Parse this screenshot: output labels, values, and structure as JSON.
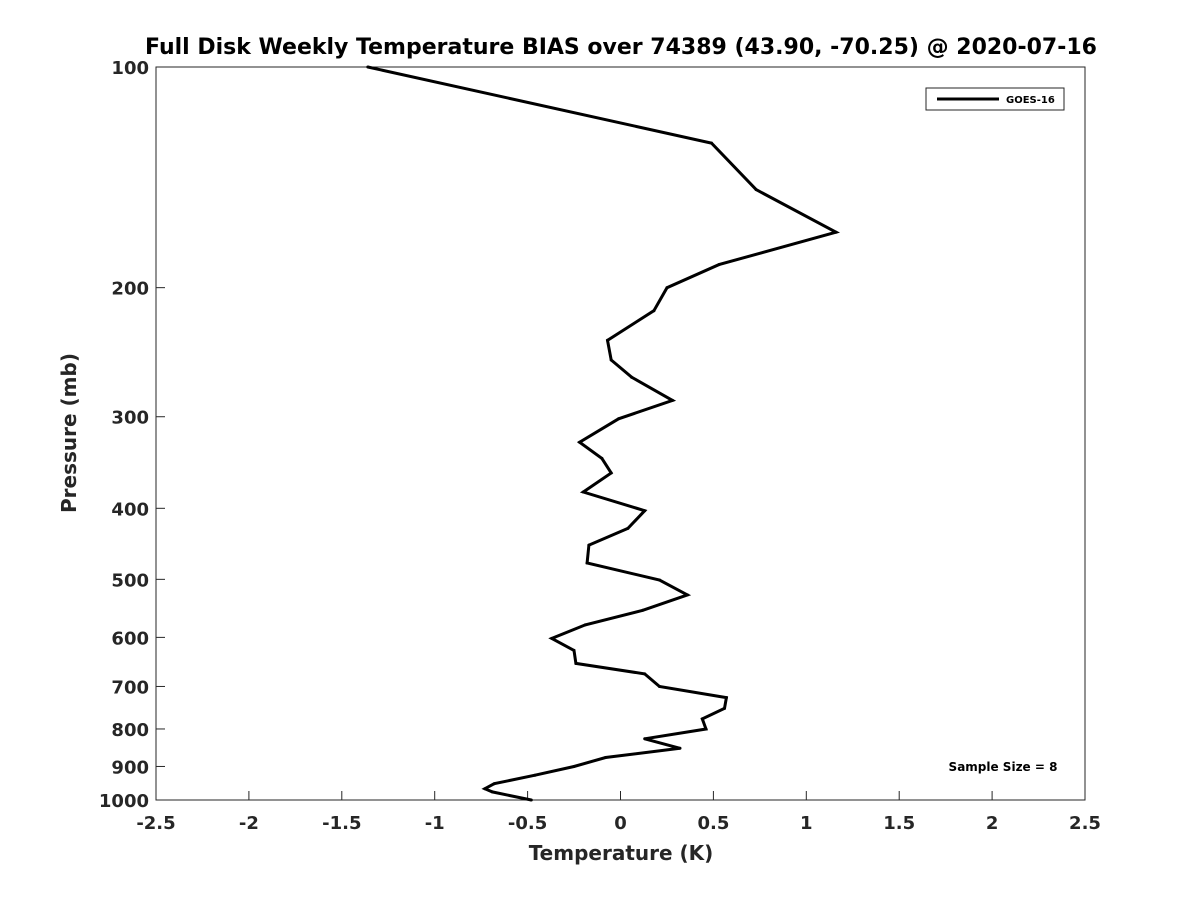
{
  "chart_data": {
    "type": "line",
    "title": "Full Disk Weekly Temperature BIAS over 74389 (43.90, -70.25) @ 2020-07-16",
    "xlabel": "Temperature (K)",
    "ylabel": "Pressure (mb)",
    "xlim": [
      -2.5,
      2.5
    ],
    "ylim": [
      100,
      1000
    ],
    "y_scale": "log",
    "y_reversed": true,
    "x_ticks": [
      -2.5,
      -2,
      -1.5,
      -1,
      -0.5,
      0,
      0.5,
      1,
      1.5,
      2,
      2.5
    ],
    "x_tick_labels": [
      "-2.5",
      "-2",
      "-1.5",
      "-1",
      "-0.5",
      "0",
      "0.5",
      "1",
      "1.5",
      "2",
      "2.5"
    ],
    "y_ticks": [
      100,
      200,
      300,
      400,
      500,
      600,
      700,
      800,
      900,
      1000
    ],
    "y_tick_labels": [
      "100",
      "200",
      "300",
      "400",
      "500",
      "600",
      "700",
      "800",
      "900",
      "1000"
    ],
    "grid": false,
    "legend": {
      "position": "top-right",
      "entries": [
        "GOES-16"
      ]
    },
    "annotation": "Sample Size = 8",
    "series": [
      {
        "name": "GOES-16",
        "color": "#000000",
        "x": [
          -1.36,
          0.49,
          0.73,
          1.16,
          0.53,
          0.25,
          0.18,
          -0.07,
          -0.05,
          0.06,
          0.28,
          -0.01,
          -0.22,
          -0.1,
          -0.05,
          -0.2,
          0.13,
          0.04,
          -0.17,
          -0.18,
          0.21,
          0.36,
          0.12,
          -0.19,
          -0.37,
          -0.25,
          -0.24,
          0.13,
          0.21,
          0.57,
          0.56,
          0.44,
          0.46,
          0.13,
          0.32,
          -0.08,
          -0.25,
          -0.46,
          -0.68,
          -0.73,
          -0.69,
          -0.48
        ],
        "y": [
          100,
          127,
          147,
          168,
          186,
          200,
          215,
          236,
          251,
          265,
          285,
          302,
          325,
          342,
          358,
          380,
          403,
          426,
          449,
          475,
          501,
          525,
          551,
          577,
          602,
          625,
          651,
          673,
          700,
          725,
          750,
          775,
          800,
          825,
          850,
          875,
          900,
          925,
          950,
          965,
          975,
          1000
        ]
      }
    ]
  }
}
